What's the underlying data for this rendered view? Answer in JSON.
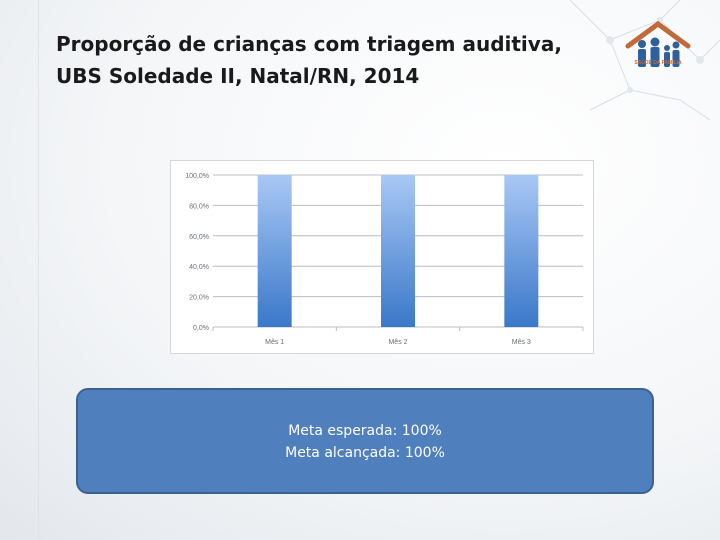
{
  "slide": {
    "title_line1": "Proporção de crianças com triagem auditiva,",
    "title_line2": "UBS Soledade II, Natal/RN, 2014",
    "meta_esperada": "Meta esperada: 100%",
    "meta_alcancada": "Meta alcançada: 100%"
  },
  "logo": {
    "text": "SAÚDE DA FAMÍLIA",
    "icon": "family-icon"
  },
  "colors": {
    "bar_top": "#a9c8f5",
    "bar_bottom": "#3a78c9",
    "box": "#4f7fbd"
  },
  "chart_data": {
    "type": "bar",
    "categories": [
      "Mês 1",
      "Mês 2",
      "Mês 3"
    ],
    "values": [
      100,
      100,
      100
    ],
    "y_ticks": [
      "0,0%",
      "20,0%",
      "40,0%",
      "60,0%",
      "80,0%",
      "100,0%"
    ],
    "ylim": [
      0,
      100
    ],
    "grid": true,
    "legend": "none"
  }
}
